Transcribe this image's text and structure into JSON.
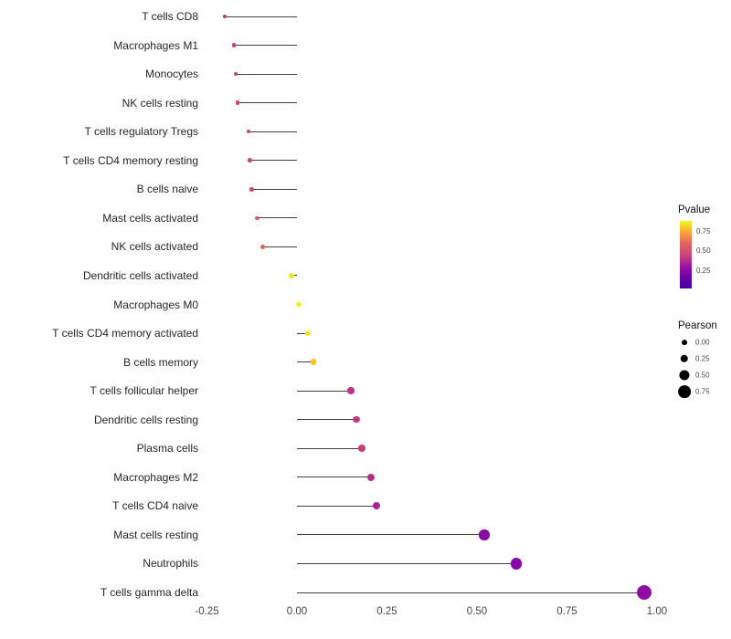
{
  "figure": {
    "background": "#ffffff"
  },
  "chart_data": {
    "type": "scatter",
    "subtype": "lollipop",
    "orientation": "horizontal",
    "title": "",
    "xlabel": "",
    "ylabel": "",
    "grid": "off",
    "baseline": 0,
    "legend_position": "right",
    "size_encoding": "Pearson",
    "color_encoding": "Pvalue",
    "categories": [
      "T cells CD8",
      "Macrophages M1",
      "Monocytes",
      "NK cells resting",
      "T cells regulatory  Tregs",
      "T cells CD4 memory resting",
      "B cells naive",
      "Mast cells activated",
      "NK cells activated",
      "Dendritic cells activated",
      "Macrophages M0",
      "T cells CD4 memory activated",
      "B cells memory",
      "T cells follicular helper",
      "Dendritic cells resting",
      "Plasma cells",
      "Macrophages M2",
      "T cells CD4 naive",
      "Mast cells resting",
      "Neutrophils",
      "T cells gamma delta"
    ],
    "values": [
      -0.2,
      -0.175,
      -0.17,
      -0.165,
      -0.135,
      -0.13,
      -0.125,
      -0.11,
      -0.095,
      -0.015,
      0.005,
      0.03,
      0.045,
      0.15,
      0.165,
      0.18,
      0.205,
      0.22,
      0.52,
      0.61,
      0.965
    ],
    "point_colors": [
      "#bf3984",
      "#c33d7f",
      "#c43e7e",
      "#c5407c",
      "#c94577",
      "#c84379",
      "#cb4875",
      "#d8586a",
      "#e0625f",
      "#f3e126",
      "#f6ef20",
      "#f6e426",
      "#fcc02c",
      "#bb3488",
      "#c03a83",
      "#c33d80",
      "#b42e8d",
      "#aa2495",
      "#8a09a5",
      "#8507a6",
      "#8f0da3"
    ],
    "x_axis": {
      "ticks": [
        -0.25,
        0,
        0.25,
        0.5,
        0.75,
        1
      ],
      "tick_labels": [
        "-0.25",
        "0.00",
        "0.25",
        "0.50",
        "0.75",
        "1.00"
      ],
      "range": [
        -0.29,
        1.05
      ]
    },
    "legends": {
      "pvalue": {
        "title": "Pvalue",
        "tick_labels": [
          "0.75",
          "0.50",
          "0.25"
        ],
        "gradient_top_to_bottom": [
          "#f0f921",
          "#fca636",
          "#e16462",
          "#cc4778",
          "#9c179e",
          "#6a00a8",
          "#42039d"
        ]
      },
      "pearson": {
        "title": "Pearson",
        "items": [
          {
            "label": "0.00"
          },
          {
            "label": "0.25"
          },
          {
            "label": "0.50"
          },
          {
            "label": "0.75"
          }
        ]
      }
    }
  }
}
